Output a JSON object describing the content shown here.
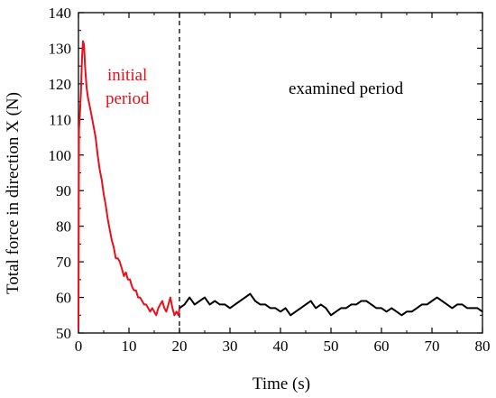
{
  "chart_data": {
    "type": "line",
    "title": "",
    "xlabel": "Time (s)",
    "ylabel": "Total force in direction X (N)",
    "xlim": [
      0,
      80
    ],
    "ylim": [
      50,
      140
    ],
    "xticks": [
      "0",
      "10",
      "20",
      "30",
      "40",
      "50",
      "60",
      "70",
      "80"
    ],
    "yticks": [
      "50",
      "60",
      "70",
      "80",
      "90",
      "100",
      "110",
      "120",
      "130",
      "140"
    ],
    "grid": false,
    "divider_x": 20,
    "annotations": [
      {
        "text_line1": "initial",
        "text_line2": "period",
        "color": "#e8101a"
      },
      {
        "text": "examined period",
        "color": "#000000"
      }
    ],
    "series": [
      {
        "color": "#e8101a",
        "x": [
          0,
          0.1,
          0.3,
          0.5,
          0.7,
          0.9,
          1.1,
          1.3,
          1.6,
          1.9,
          2.2,
          2.6,
          3.0,
          3.4,
          3.8,
          4.2,
          4.6,
          5.0,
          5.4,
          5.8,
          6.2,
          6.6,
          7.0,
          7.4,
          7.8,
          8.2,
          8.6,
          9.0,
          9.4,
          9.8,
          10.2,
          10.6,
          11.0,
          11.4,
          11.8,
          12.2,
          12.6,
          13.0,
          13.4,
          13.8,
          14.2,
          14.6,
          15.0,
          15.4,
          15.8,
          16.2,
          16.6,
          17.0,
          17.4,
          17.8,
          18.2,
          18.6,
          19.0,
          19.4,
          19.8,
          20.0
        ],
        "y": [
          51,
          107,
          112,
          118,
          127,
          132,
          131,
          125,
          119,
          116,
          114,
          111,
          108,
          105,
          100,
          96,
          93,
          89,
          86,
          82,
          79,
          76,
          74,
          71,
          71,
          70,
          68,
          66,
          67,
          65,
          65,
          63,
          62,
          62,
          60,
          60,
          59,
          58,
          58,
          57,
          56,
          57,
          56,
          55,
          57,
          58,
          59,
          57,
          56,
          58,
          60,
          57,
          55,
          56,
          55,
          57
        ]
      },
      {
        "color": "#000000",
        "x": [
          20,
          21,
          22,
          23,
          24,
          25,
          26,
          27,
          28,
          29,
          30,
          31,
          32,
          33,
          34,
          35,
          36,
          37,
          38,
          39,
          40,
          41,
          42,
          43,
          44,
          45,
          46,
          47,
          48,
          49,
          50,
          51,
          52,
          53,
          54,
          55,
          56,
          57,
          58,
          59,
          60,
          61,
          62,
          63,
          64,
          65,
          66,
          67,
          68,
          69,
          70,
          71,
          72,
          73,
          74,
          75,
          76,
          77,
          78,
          79,
          80
        ],
        "y": [
          57,
          58,
          60,
          58,
          59,
          60,
          58,
          59,
          58,
          58,
          57,
          58,
          59,
          60,
          61,
          59,
          58,
          58,
          57,
          57,
          56,
          57,
          55,
          56,
          57,
          58,
          59,
          57,
          58,
          57,
          55,
          56,
          57,
          57,
          58,
          58,
          59,
          59,
          58,
          57,
          57,
          56,
          57,
          56,
          55,
          56,
          56,
          57,
          58,
          58,
          59,
          60,
          59,
          58,
          57,
          58,
          58,
          57,
          57,
          57,
          56
        ]
      }
    ]
  }
}
